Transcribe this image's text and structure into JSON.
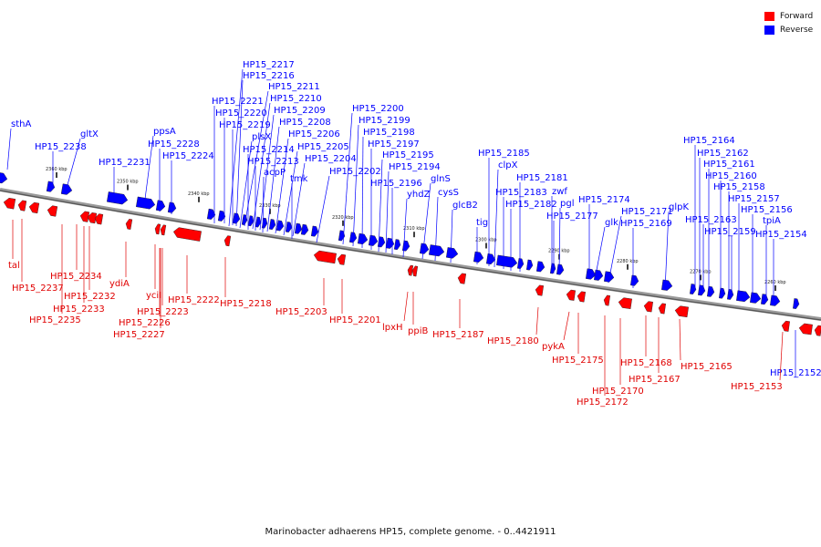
{
  "caption": "Marinobacter adhaerens HP15, complete genome. - 0..4421911",
  "legend": [
    {
      "label": "Forward",
      "color": "#ff0000"
    },
    {
      "label": "Reverse",
      "color": "#0000ff"
    }
  ],
  "colors": {
    "forward": "#ff0000",
    "reverse": "#0000ff",
    "backbone": "#777777"
  },
  "ticks": [
    "2360 kbp",
    "2350 kbp",
    "2340 kbp",
    "2330 kbp",
    "2320 kbp",
    "2310 kbp",
    "2300 kbp",
    "2290 kbp",
    "2280 kbp",
    "2270 kbp",
    "2260 kbp"
  ],
  "reverse_genes": [
    "sthA",
    "HP15_2238",
    "gltX",
    "HP15_2231",
    "ppsA",
    "HP15_2228",
    "HP15_2224",
    "HP15_2221",
    "HP15_2220",
    "HP15_2219",
    "plsX",
    "HP15_2214",
    "HP15_2213",
    "acpP",
    "HP15_2217",
    "HP15_2216",
    "HP15_2211",
    "HP15_2210",
    "HP15_2209",
    "HP15_2208",
    "HP15_2206",
    "HP15_2205",
    "HP15_2204",
    "tmk",
    "HP15_2202",
    "HP15_2200",
    "HP15_2199",
    "HP15_2198",
    "HP15_2197",
    "HP15_2195",
    "HP15_2194",
    "HP15_2196",
    "yhdZ",
    "glnS",
    "cysS",
    "glcB2",
    "tig",
    "HP15_2185",
    "clpX",
    "HP15_2183",
    "HP15_2182",
    "HP15_2181",
    "zwf",
    "pgl",
    "HP15_2177",
    "HP15_2174",
    "glk",
    "HP15_2171",
    "HP15_2169",
    "glpK",
    "HP15_2164",
    "HP15_2162",
    "HP15_2161",
    "HP15_2160",
    "HP15_2158",
    "HP15_2157",
    "HP15_2156",
    "HP15_2163",
    "HP15_2159",
    "tpiA",
    "HP15_2154",
    "HP15_2152"
  ],
  "forward_genes": [
    "tal",
    "HP15_2237",
    "HP15_2234",
    "HP15_2232",
    "HP15_2233",
    "HP15_2235",
    "ydiA",
    "yciI",
    "HP15_2226",
    "HP15_2227",
    "HP15_2223",
    "HP15_2222",
    "HP15_2218",
    "HP15_2203",
    "HP15_2201",
    "lpxH",
    "ppiB",
    "HP15_2187",
    "HP15_2180",
    "pykA",
    "HP15_2175",
    "HP15_2172",
    "HP15_2170",
    "HP15_2168",
    "HP15_2167",
    "HP15_2165",
    "HP15_2153"
  ]
}
